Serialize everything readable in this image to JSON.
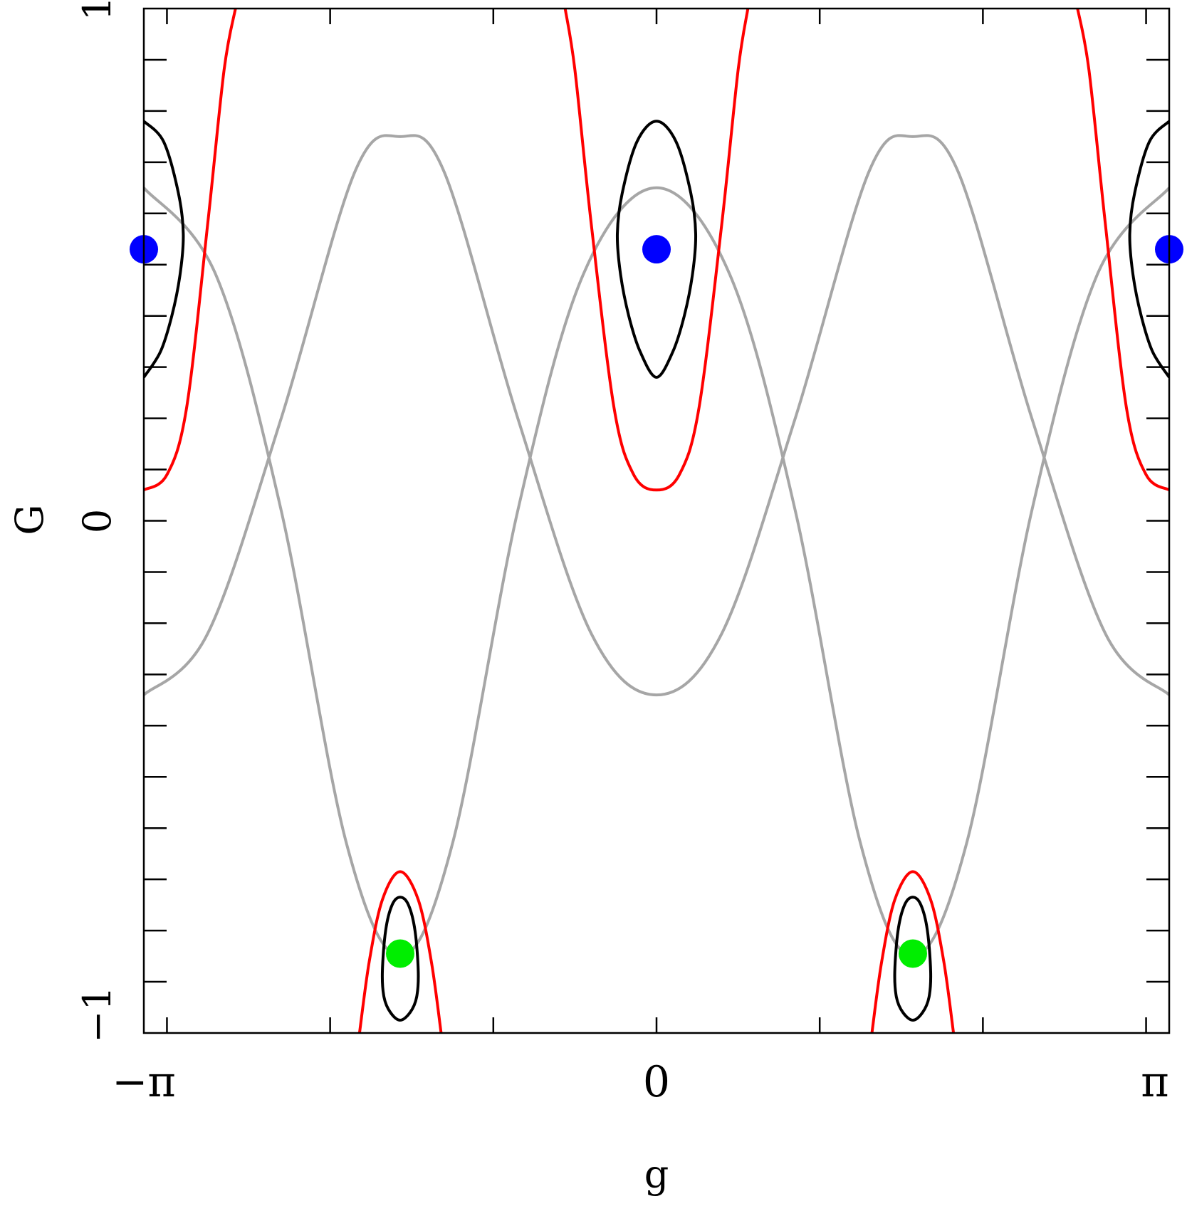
{
  "chart_data": {
    "type": "line",
    "title": "",
    "xlabel": "g",
    "ylabel": "G",
    "xlim": [
      -3.14159,
      3.14159
    ],
    "ylim": [
      -1,
      1
    ],
    "x_ticks": [
      {
        "value": -3.14159,
        "label": "−π"
      },
      {
        "value": 0,
        "label": "0"
      },
      {
        "value": 3.14159,
        "label": "π"
      }
    ],
    "y_ticks": [
      {
        "value": -1,
        "label": "−1"
      },
      {
        "value": 0,
        "label": "0"
      },
      {
        "value": 1,
        "label": "1"
      }
    ],
    "grid": false,
    "legend": "none",
    "colors": {
      "separatrix": "#ff0000",
      "libration_orbit": "#000000",
      "circulation_orbit": "#a6a6a6",
      "stable_point_upper": "#0000ff",
      "stable_point_lower": "#00ee00"
    },
    "series": [
      {
        "role": "circulation_orbit",
        "color": "#a6a6a6",
        "points": [
          [
            -3.1416,
            0.65
          ],
          [
            -2.7,
            0.48
          ],
          [
            -2.3,
            0.02
          ],
          [
            -1.9,
            -0.63
          ],
          [
            -1.5708,
            -0.85
          ],
          [
            -1.25,
            -0.63
          ],
          [
            -0.85,
            0.02
          ],
          [
            -0.45,
            0.48
          ],
          [
            0,
            0.65
          ],
          [
            0.45,
            0.48
          ],
          [
            0.85,
            0.02
          ],
          [
            1.25,
            -0.63
          ],
          [
            1.5708,
            -0.85
          ],
          [
            1.9,
            -0.63
          ],
          [
            2.3,
            0.02
          ],
          [
            2.7,
            0.48
          ],
          [
            3.1416,
            0.65
          ]
        ]
      },
      {
        "role": "circulation_orbit",
        "color": "#a6a6a6",
        "points": [
          [
            -3.1416,
            -0.34
          ],
          [
            -2.75,
            -0.22
          ],
          [
            -2.3,
            0.2
          ],
          [
            -1.85,
            0.68
          ],
          [
            -1.5708,
            0.75
          ],
          [
            -1.3,
            0.68
          ],
          [
            -0.85,
            0.2
          ],
          [
            -0.4,
            -0.22
          ],
          [
            0,
            -0.34
          ],
          [
            0.4,
            -0.22
          ],
          [
            0.85,
            0.2
          ],
          [
            1.3,
            0.68
          ],
          [
            1.5708,
            0.75
          ],
          [
            1.85,
            0.68
          ],
          [
            2.3,
            0.2
          ],
          [
            2.75,
            -0.22
          ],
          [
            3.1416,
            -0.34
          ]
        ]
      },
      {
        "role": "separatrix",
        "color": "#ff0000",
        "points": [
          [
            -3.1416,
            0.06
          ],
          [
            -3.0,
            0.09
          ],
          [
            -2.88,
            0.22
          ],
          [
            -2.75,
            0.58
          ],
          [
            -2.65,
            0.88
          ],
          [
            -2.58,
            1.0
          ]
        ]
      },
      {
        "role": "separatrix",
        "color": "#ff0000",
        "points": [
          [
            -0.56,
            1.0
          ],
          [
            -0.5,
            0.88
          ],
          [
            -0.4,
            0.58
          ],
          [
            -0.26,
            0.22
          ],
          [
            -0.14,
            0.09
          ],
          [
            0,
            0.06
          ],
          [
            0.14,
            0.09
          ],
          [
            0.26,
            0.22
          ],
          [
            0.4,
            0.58
          ],
          [
            0.5,
            0.88
          ],
          [
            0.56,
            1.0
          ]
        ]
      },
      {
        "role": "separatrix",
        "color": "#ff0000",
        "points": [
          [
            2.58,
            1.0
          ],
          [
            2.65,
            0.88
          ],
          [
            2.75,
            0.58
          ],
          [
            2.88,
            0.22
          ],
          [
            3.0,
            0.09
          ],
          [
            3.1416,
            0.06
          ]
        ]
      },
      {
        "role": "separatrix",
        "color": "#ff0000",
        "points": [
          [
            -1.82,
            -1.0
          ],
          [
            -1.76,
            -0.86
          ],
          [
            -1.68,
            -0.74
          ],
          [
            -1.5708,
            -0.685
          ],
          [
            -1.46,
            -0.74
          ],
          [
            -1.38,
            -0.86
          ],
          [
            -1.32,
            -1.0
          ]
        ]
      },
      {
        "role": "separatrix",
        "color": "#ff0000",
        "points": [
          [
            1.32,
            -1.0
          ],
          [
            1.38,
            -0.86
          ],
          [
            1.46,
            -0.74
          ],
          [
            1.5708,
            -0.685
          ],
          [
            1.68,
            -0.74
          ],
          [
            1.76,
            -0.86
          ],
          [
            1.82,
            -1.0
          ]
        ]
      },
      {
        "role": "libration_orbit",
        "color": "#000000",
        "closed": true,
        "points": [
          [
            0,
            0.78
          ],
          [
            0.12,
            0.74
          ],
          [
            0.21,
            0.64
          ],
          [
            0.24,
            0.56
          ],
          [
            0.22,
            0.48
          ],
          [
            0.17,
            0.4
          ],
          [
            0.1,
            0.33
          ],
          [
            0,
            0.28
          ],
          [
            -0.1,
            0.33
          ],
          [
            -0.17,
            0.4
          ],
          [
            -0.22,
            0.48
          ],
          [
            -0.24,
            0.56
          ],
          [
            -0.21,
            0.64
          ],
          [
            -0.12,
            0.74
          ]
        ]
      },
      {
        "role": "libration_orbit",
        "color": "#000000",
        "points": [
          [
            -3.1416,
            0.78
          ],
          [
            -3.02,
            0.74
          ],
          [
            -2.93,
            0.64
          ],
          [
            -2.9,
            0.56
          ],
          [
            -2.92,
            0.48
          ],
          [
            -2.97,
            0.4
          ],
          [
            -3.04,
            0.33
          ],
          [
            -3.1416,
            0.28
          ]
        ]
      },
      {
        "role": "libration_orbit",
        "color": "#000000",
        "points": [
          [
            3.1416,
            0.78
          ],
          [
            3.02,
            0.74
          ],
          [
            2.93,
            0.64
          ],
          [
            2.9,
            0.56
          ],
          [
            2.92,
            0.48
          ],
          [
            2.97,
            0.4
          ],
          [
            3.04,
            0.33
          ],
          [
            3.1416,
            0.28
          ]
        ]
      },
      {
        "role": "libration_orbit",
        "color": "#000000",
        "closed": true,
        "points": [
          [
            -1.5708,
            -0.735
          ],
          [
            -1.52,
            -0.75
          ],
          [
            -1.48,
            -0.8
          ],
          [
            -1.46,
            -0.88
          ],
          [
            -1.47,
            -0.93
          ],
          [
            -1.51,
            -0.96
          ],
          [
            -1.5708,
            -0.975
          ],
          [
            -1.63,
            -0.96
          ],
          [
            -1.67,
            -0.93
          ],
          [
            -1.68,
            -0.88
          ],
          [
            -1.66,
            -0.8
          ],
          [
            -1.62,
            -0.75
          ]
        ]
      },
      {
        "role": "libration_orbit",
        "color": "#000000",
        "closed": true,
        "points": [
          [
            1.5708,
            -0.735
          ],
          [
            1.62,
            -0.75
          ],
          [
            1.66,
            -0.8
          ],
          [
            1.68,
            -0.88
          ],
          [
            1.67,
            -0.93
          ],
          [
            1.63,
            -0.96
          ],
          [
            1.5708,
            -0.975
          ],
          [
            1.51,
            -0.96
          ],
          [
            1.47,
            -0.93
          ],
          [
            1.46,
            -0.88
          ],
          [
            1.48,
            -0.8
          ],
          [
            1.52,
            -0.75
          ]
        ]
      }
    ],
    "points": [
      {
        "x": -3.14159,
        "y": 0.53,
        "color": "#0000ff"
      },
      {
        "x": 0,
        "y": 0.53,
        "color": "#0000ff"
      },
      {
        "x": 3.14159,
        "y": 0.53,
        "color": "#0000ff"
      },
      {
        "x": -1.5708,
        "y": -0.845,
        "color": "#00ee00"
      },
      {
        "x": 1.5708,
        "y": -0.845,
        "color": "#00ee00"
      }
    ]
  }
}
